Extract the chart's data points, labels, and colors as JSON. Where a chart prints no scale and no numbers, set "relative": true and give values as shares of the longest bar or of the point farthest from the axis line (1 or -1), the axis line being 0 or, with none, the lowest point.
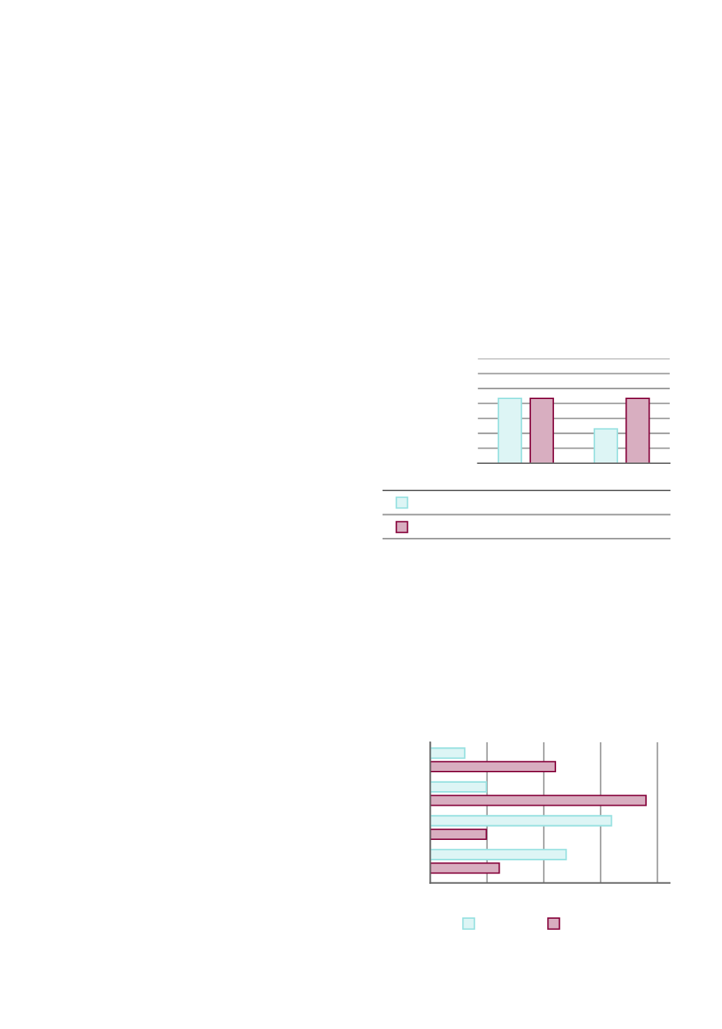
{
  "chart_data": [
    {
      "type": "bar",
      "categories": [
        null,
        null
      ],
      "series": [
        {
          "color": "#ddf5f5",
          "values": [
            1,
            0.53
          ]
        },
        {
          "color": "#d8aec0",
          "values": [
            1,
            1
          ]
        }
      ],
      "relative": true,
      "grid": "y"
    },
    {
      "type": "bar",
      "orientation": "horizontal",
      "categories": [
        null,
        null,
        null,
        null
      ],
      "series": [
        {
          "color": "#ddf5f5",
          "values": [
            0.16,
            0.26,
            0.84,
            0.63
          ]
        },
        {
          "color": "#d8aec0",
          "values": [
            0.58,
            1,
            0.26,
            0.32
          ]
        }
      ],
      "relative": true,
      "grid": "x"
    }
  ]
}
